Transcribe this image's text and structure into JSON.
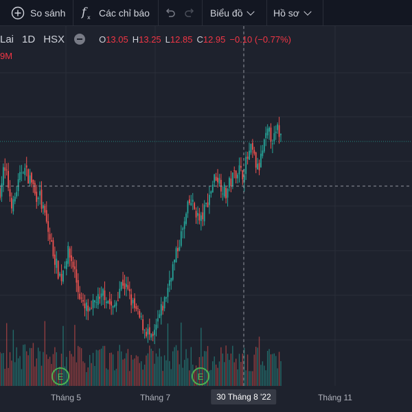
{
  "toolbar": {
    "compare_label": "So sánh",
    "indicators_label": "Các chỉ báo",
    "chart_type_label": "Biểu đồ",
    "profile_label": "Hồ sơ"
  },
  "legend": {
    "symbol": "Lai",
    "interval": "1D",
    "exchange": "HSX",
    "open_key": "O",
    "open": "13.05",
    "high_key": "H",
    "high": "13.25",
    "low_key": "L",
    "low": "12.85",
    "close_key": "C",
    "close": "12.95",
    "change": "−0.10 (−0.77%)",
    "volume_partial": "9M"
  },
  "xaxis": {
    "labels": [
      "Tháng 5",
      "Tháng 7",
      "Tháng 11"
    ],
    "crosshair_label": "30 Tháng 8 '22"
  },
  "markers": [
    "E",
    "E"
  ],
  "colors": {
    "up": "#26a69a",
    "down": "#ef5350",
    "bg": "#1e222d",
    "toolbar": "#131722",
    "marker": "#4caf50"
  },
  "chart_data": {
    "type": "candlestick",
    "close_path": [
      12.3,
      12.9,
      12.8,
      12.2,
      11.8,
      12.3,
      12.6,
      13.1,
      12.9,
      12.7,
      12.6,
      12.1,
      12.3,
      11.8,
      11.5,
      11.0,
      10.6,
      10.2,
      9.8,
      9.6,
      10.1,
      10.4,
      10.2,
      9.9,
      9.3,
      9.0,
      8.6,
      8.7,
      8.4,
      8.8,
      9.0,
      8.8,
      9.2,
      9.0,
      8.8,
      8.6,
      8.9,
      9.3,
      9.5,
      9.3,
      9.1,
      8.8,
      8.6,
      8.4,
      8.2,
      8.0,
      7.9,
      7.6,
      7.9,
      8.3,
      8.6,
      8.9,
      9.3,
      9.8,
      10.1,
      10.5,
      10.9,
      11.2,
      11.7,
      12.0,
      11.8,
      11.6,
      11.3,
      11.6,
      11.9,
      12.2,
      12.6,
      12.8,
      12.6,
      12.4,
      12.2,
      12.5,
      12.7,
      12.9,
      13.0,
      12.8,
      13.1,
      13.4,
      13.6,
      13.2,
      12.9,
      13.4,
      13.8,
      14.1,
      14.0,
      13.9,
      14.2,
      14.0
    ]
  }
}
